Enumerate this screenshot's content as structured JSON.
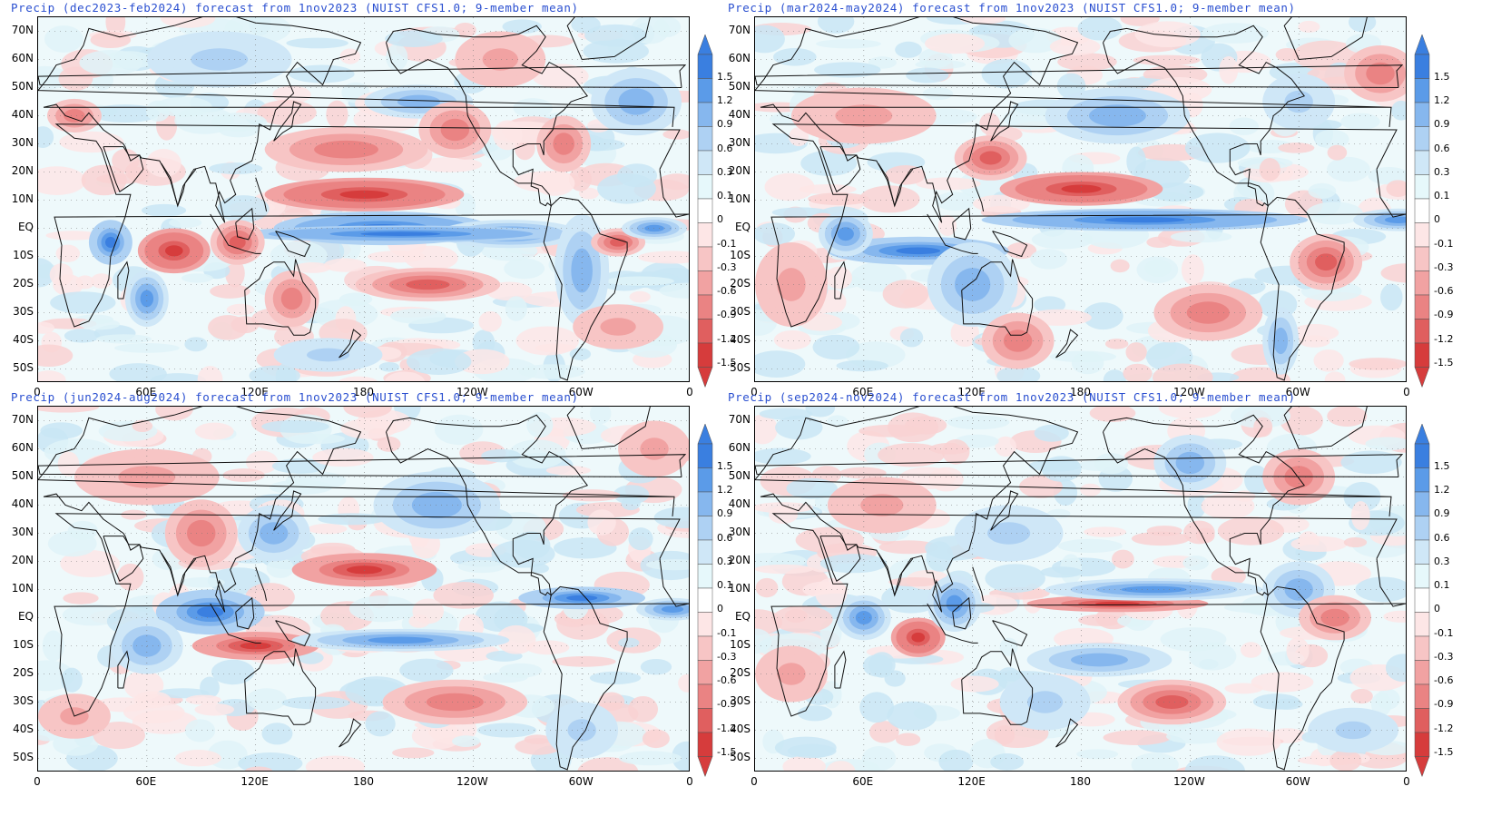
{
  "panels": [
    {
      "id": "p1",
      "title": "Precip (dec2023-feb2024) forecast from 1nov2023 (NUIST CFS1.0; 9-member mean)"
    },
    {
      "id": "p2",
      "title": "Precip (mar2024-may2024) forecast from 1nov2023 (NUIST CFS1.0; 9-member mean)"
    },
    {
      "id": "p3",
      "title": "Precip (jun2024-aug2024) forecast from 1nov2023 (NUIST CFS1.0; 9-member mean)"
    },
    {
      "id": "p4",
      "title": "Precip (sep2024-nov2024) forecast from 1nov2023 (NUIST CFS1.0; 9-member mean)"
    }
  ],
  "lat_labels": [
    "70N",
    "60N",
    "50N",
    "40N",
    "30N",
    "20N",
    "10N",
    "EQ",
    "10S",
    "20S",
    "30S",
    "40S",
    "50S"
  ],
  "lon_labels": [
    "0",
    "60E",
    "120E",
    "180",
    "120W",
    "60W",
    "0"
  ],
  "colorbar": {
    "labels": [
      "1.5",
      "1.2",
      "0.9",
      "0.6",
      "0.3",
      "0.1",
      "0",
      "-0.1",
      "-0.3",
      "-0.6",
      "-0.9",
      "-1.2",
      "-1.5"
    ],
    "colors": [
      "#3a7fe0",
      "#5b9be8",
      "#86b7ee",
      "#aed1f3",
      "#cfe7f7",
      "#e6f8fb",
      "#ffffff",
      "#fde6e6",
      "#f7c5c5",
      "#f1a2a2",
      "#ea8383",
      "#e05f5f",
      "#d63c3c"
    ]
  }
}
